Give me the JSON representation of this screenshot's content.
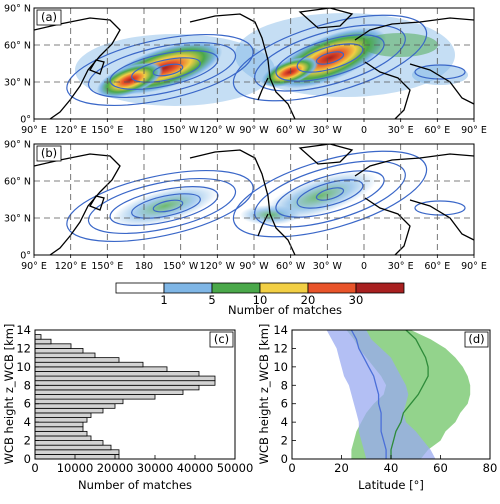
{
  "panels": {
    "a": {
      "letter": "(a)"
    },
    "b": {
      "letter": "(b)"
    },
    "c": {
      "letter": "(c)"
    },
    "d": {
      "letter": "(d)"
    }
  },
  "map": {
    "lon_ticks": [
      "90° E",
      "120° E",
      "150° E",
      "180",
      "150° W",
      "120° W",
      "90° W",
      "60° W",
      "30° W",
      "0",
      "30° E",
      "60° E",
      "90° E"
    ],
    "lat_ticks_a": [
      "90° N",
      "60° N",
      "30° N",
      "0°"
    ],
    "lat_ticks_b": [
      "90° N",
      "60° N",
      "30° N",
      "0°"
    ],
    "contour_color": "#3a67c8",
    "land_outline_color": "#000000"
  },
  "colorbar": {
    "title": "Number of matches",
    "tick_labels": [
      "1",
      "5",
      "10",
      "20",
      "30"
    ],
    "colors": [
      "#ffffff",
      "#7fb6e6",
      "#4aa84a",
      "#f2cf44",
      "#e8542a",
      "#a82020"
    ]
  },
  "chart_data": [
    {
      "type": "bar",
      "panel": "c",
      "orientation": "horizontal",
      "xlabel": "Number of matches",
      "ylabel": "WCB height z_WCB [km]",
      "xlim": [
        0,
        50000
      ],
      "ylim": [
        0,
        14
      ],
      "x_ticks": [
        "0",
        "10000",
        "20000",
        "30000",
        "40000",
        "50000"
      ],
      "y_ticks": [
        "0",
        "2",
        "4",
        "6",
        "8",
        "10",
        "12",
        "14"
      ],
      "bin_width_km": 0.5,
      "bins_lower_km": [
        0,
        0.5,
        1,
        1.5,
        2,
        2.5,
        3,
        3.5,
        4,
        4.5,
        5,
        5.5,
        6,
        6.5,
        7,
        7.5,
        8,
        8.5,
        9,
        9.5,
        10,
        10.5,
        11,
        11.5,
        12,
        12.5,
        13
      ],
      "values": [
        21000,
        21000,
        19000,
        17000,
        14000,
        13000,
        12000,
        12000,
        13000,
        14000,
        17000,
        20000,
        22000,
        30000,
        37000,
        41000,
        45000,
        45000,
        41000,
        33000,
        27000,
        21000,
        15000,
        12000,
        9000,
        4000,
        1500
      ],
      "bar_color": "#d3d3d3"
    },
    {
      "type": "line",
      "panel": "d",
      "xlabel": "Latitude [°]",
      "ylabel": "WCB height z_WCB [km]",
      "xlim": [
        0,
        80
      ],
      "ylim": [
        0,
        14
      ],
      "x_ticks": [
        "0",
        "20",
        "40",
        "60",
        "80"
      ],
      "y_ticks": [
        "0",
        "2",
        "4",
        "6",
        "8",
        "10",
        "12",
        "14"
      ],
      "series": [
        {
          "color": "#4b6fd8",
          "fill_color": "#9aaaf0",
          "y_km": [
            0,
            1,
            2,
            3,
            4,
            5,
            6,
            7,
            8,
            9,
            10,
            11,
            12,
            13,
            14
          ],
          "median": [
            38,
            38,
            37,
            36,
            36,
            36,
            35,
            35,
            34,
            33,
            31,
            29,
            27,
            26,
            24
          ],
          "lower": [
            30,
            29,
            28,
            27,
            27,
            26,
            25,
            24,
            23,
            21,
            20,
            19,
            18,
            16,
            14
          ],
          "upper": [
            58,
            56,
            53,
            50,
            46,
            45,
            46,
            47,
            46,
            44,
            42,
            40,
            36,
            32,
            30
          ]
        },
        {
          "color": "#2e8b3a",
          "fill_color": "#6fc465",
          "y_km": [
            0,
            1,
            2,
            3,
            4,
            5,
            6,
            7,
            8,
            9,
            10,
            11,
            12,
            13,
            14
          ],
          "median": [
            40,
            40,
            41,
            42,
            44,
            45,
            48,
            51,
            53,
            55,
            55,
            54,
            52,
            50,
            46
          ],
          "lower": [
            24,
            24,
            25,
            26,
            28,
            30,
            33,
            37,
            38,
            36,
            33,
            30,
            27,
            25,
            22
          ],
          "upper": [
            52,
            55,
            60,
            62,
            66,
            68,
            71,
            72,
            72,
            71,
            69,
            66,
            62,
            56,
            48
          ]
        }
      ]
    }
  ]
}
